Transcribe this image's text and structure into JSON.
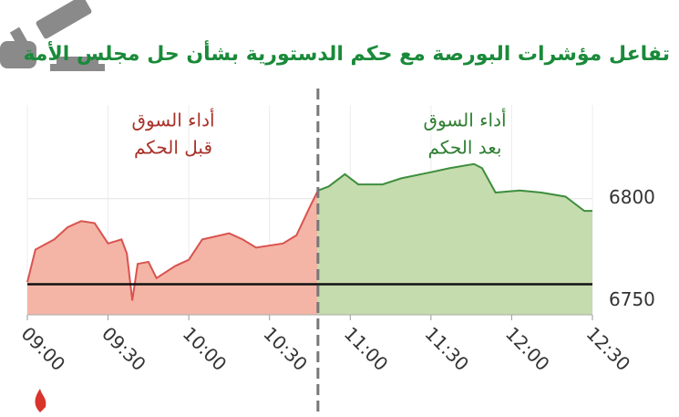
{
  "chart_data": {
    "type": "line",
    "title": "تفاعل مؤشرات البورصة مع حكم الدستورية بشأن حل مجلس الأمة",
    "annotations": [
      {
        "lines": [
          "أداء السوق",
          "قبل الحكم"
        ],
        "color": "#a8322a"
      },
      {
        "lines": [
          "أداء السوق",
          "بعد الحكم"
        ],
        "color": "#2e7d32"
      }
    ],
    "series": [
      {
        "color": "#d9534f",
        "fill": "#f4b5a6",
        "x": [
          "09:00",
          "09:03",
          "09:10",
          "09:15",
          "09:20",
          "09:25",
          "09:30",
          "09:35",
          "09:37",
          "09:39",
          "09:41",
          "09:45",
          "09:48",
          "09:55",
          "10:00",
          "10:05",
          "10:15",
          "10:20",
          "10:25",
          "10:35",
          "10:40",
          "10:45",
          "10:48"
        ],
        "values": [
          6759,
          6775,
          6780,
          6786,
          6789,
          6788,
          6778,
          6780,
          6773,
          6750,
          6768,
          6769,
          6761,
          6767,
          6770,
          6780,
          6783,
          6780,
          6776,
          6778,
          6782,
          6796,
          6804
        ]
      },
      {
        "color": "#3e8e3e",
        "fill": "#c5dcae",
        "x": [
          "10:48",
          "10:52",
          "10:58",
          "11:03",
          "11:12",
          "11:19",
          "11:30",
          "11:37",
          "11:46",
          "11:49",
          "11:54",
          "12:03",
          "12:11",
          "12:20",
          "12:27",
          "12:30"
        ],
        "values": [
          6804,
          6806,
          6812,
          6807,
          6807,
          6810,
          6813,
          6815,
          6817,
          6815,
          6803,
          6804,
          6803,
          6801,
          6794,
          6794
        ]
      }
    ],
    "reference_line": 6758,
    "marker_x": "10:48",
    "xlim": [
      "09:00",
      "12:30"
    ],
    "xticks": [
      "09:00",
      "09:30",
      "10:00",
      "10:30",
      "11:00",
      "11:30",
      "12:00",
      "12:30"
    ],
    "ylim": [
      6743,
      6846
    ],
    "yticks": [
      6750,
      6800
    ],
    "grid": true
  }
}
